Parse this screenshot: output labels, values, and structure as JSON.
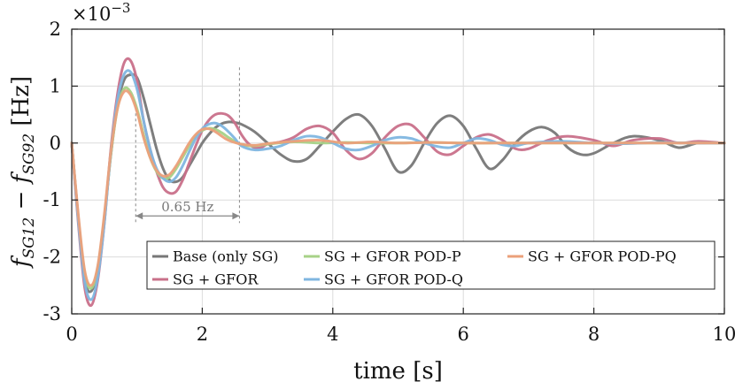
{
  "chart_data": {
    "type": "line",
    "title": "",
    "xlabel": "time [s]",
    "ylabel": "f_SG12 − f_SG92 [Hz]",
    "ylabel_parts": {
      "f1": "f",
      "sub1": "SG12",
      "minus": "−",
      "f2": "f",
      "sub2": "SG92",
      "unit": "[Hz]"
    },
    "y_multiplier": "×10",
    "y_multiplier_exp": "−3",
    "xlim": [
      0,
      10
    ],
    "ylim": [
      -3,
      2
    ],
    "xticks": [
      0,
      2,
      4,
      6,
      8,
      10
    ],
    "xtick_labels": [
      "0",
      "2",
      "4",
      "6",
      "8",
      "10"
    ],
    "yticks": [
      2,
      1,
      0,
      -1,
      -2,
      -3
    ],
    "ytick_labels": [
      "2",
      "1",
      "0",
      "-1",
      "-2",
      "-3"
    ],
    "grid": true,
    "legend_position": "lower-right",
    "annotation": {
      "text": "0.65 Hz",
      "x_start": 0.98,
      "x_end": 2.57,
      "y": -1.28,
      "y_top": -1.0
    },
    "series": [
      {
        "name": "Base (only SG)",
        "color": "#777777",
        "x": [
          0,
          0.1,
          0.2,
          0.3,
          0.4,
          0.5,
          0.6,
          0.7,
          0.8,
          0.9,
          1.0,
          1.1,
          1.2,
          1.3,
          1.4,
          1.5,
          1.6,
          1.7,
          1.8,
          1.9,
          2.0,
          2.1,
          2.2,
          2.3,
          2.4,
          2.5,
          2.6,
          2.8,
          3.0,
          3.2,
          3.4,
          3.6,
          3.8,
          4.0,
          4.2,
          4.4,
          4.6,
          4.8,
          5.0,
          5.2,
          5.4,
          5.6,
          5.8,
          6.0,
          6.2,
          6.4,
          6.6,
          6.8,
          7.0,
          7.2,
          7.4,
          7.6,
          7.8,
          8.0,
          8.3,
          8.6,
          9.0,
          9.3,
          9.6,
          10.0
        ],
        "y": [
          0,
          -1.3,
          -2.4,
          -2.6,
          -2.2,
          -1.3,
          -0.2,
          0.65,
          1.1,
          1.2,
          1.15,
          0.8,
          0.35,
          -0.1,
          -0.45,
          -0.65,
          -0.68,
          -0.6,
          -0.4,
          -0.2,
          0.0,
          0.15,
          0.27,
          0.34,
          0.37,
          0.36,
          0.33,
          0.2,
          0.0,
          -0.2,
          -0.32,
          -0.28,
          -0.05,
          0.2,
          0.42,
          0.5,
          0.3,
          -0.1,
          -0.5,
          -0.4,
          0.0,
          0.35,
          0.48,
          0.3,
          -0.1,
          -0.45,
          -0.3,
          0.0,
          0.2,
          0.28,
          0.18,
          -0.08,
          -0.2,
          -0.18,
          0.0,
          0.12,
          0.05,
          -0.08,
          0.0,
          0.0
        ]
      },
      {
        "name": "SG + GFOR",
        "color": "#c9708a",
        "x": [
          0,
          0.1,
          0.2,
          0.3,
          0.4,
          0.5,
          0.6,
          0.7,
          0.8,
          0.9,
          1.0,
          1.1,
          1.2,
          1.3,
          1.4,
          1.5,
          1.6,
          1.7,
          1.8,
          1.9,
          2.0,
          2.1,
          2.2,
          2.3,
          2.4,
          2.5,
          2.6,
          2.7,
          2.8,
          2.9,
          3.0,
          3.2,
          3.4,
          3.6,
          3.8,
          4.0,
          4.2,
          4.4,
          4.6,
          4.8,
          5.0,
          5.2,
          5.4,
          5.6,
          5.8,
          6.0,
          6.2,
          6.4,
          6.6,
          6.8,
          7.0,
          7.3,
          7.6,
          8.0,
          8.3,
          8.6,
          9.0,
          9.3,
          9.6,
          10.0
        ],
        "y": [
          0,
          -1.4,
          -2.55,
          -2.85,
          -2.4,
          -1.4,
          -0.1,
          0.85,
          1.4,
          1.45,
          1.1,
          0.4,
          -0.1,
          -0.5,
          -0.78,
          -0.88,
          -0.85,
          -0.65,
          -0.35,
          -0.05,
          0.22,
          0.4,
          0.5,
          0.52,
          0.48,
          0.35,
          0.15,
          0.0,
          -0.08,
          -0.08,
          -0.02,
          0.02,
          0.1,
          0.25,
          0.3,
          0.18,
          -0.12,
          -0.28,
          -0.18,
          0.1,
          0.3,
          0.32,
          0.1,
          -0.15,
          -0.2,
          -0.05,
          0.1,
          0.15,
          0.05,
          -0.1,
          -0.1,
          0.05,
          0.12,
          0.05,
          -0.05,
          0.05,
          0.08,
          0.0,
          0.03,
          0.0
        ]
      },
      {
        "name": "SG + GFOR POD-P",
        "color": "#a7d287",
        "x": [
          0,
          0.1,
          0.2,
          0.3,
          0.4,
          0.5,
          0.6,
          0.7,
          0.8,
          0.9,
          1.0,
          1.1,
          1.2,
          1.3,
          1.4,
          1.5,
          1.6,
          1.7,
          1.8,
          1.9,
          2.0,
          2.1,
          2.2,
          2.3,
          2.4,
          2.5,
          2.6,
          2.8,
          3.0,
          3.4,
          3.8,
          4.2,
          4.6,
          5.0,
          5.5,
          6.0,
          6.5,
          7.0,
          8.0,
          9.0,
          10.0
        ],
        "y": [
          0,
          -1.3,
          -2.3,
          -2.55,
          -2.2,
          -1.3,
          -0.2,
          0.6,
          0.95,
          0.9,
          0.6,
          0.15,
          -0.25,
          -0.5,
          -0.62,
          -0.6,
          -0.45,
          -0.25,
          -0.05,
          0.12,
          0.22,
          0.26,
          0.24,
          0.18,
          0.1,
          0.03,
          -0.03,
          -0.05,
          -0.02,
          0.02,
          0.0,
          0.01,
          0.0,
          0.0,
          0.01,
          0.0,
          0.0,
          0.0,
          0.0,
          0.0,
          0.0
        ]
      },
      {
        "name": "SG + GFOR POD-Q",
        "color": "#7fb6e0",
        "x": [
          0,
          0.1,
          0.2,
          0.3,
          0.4,
          0.5,
          0.6,
          0.7,
          0.8,
          0.9,
          1.0,
          1.1,
          1.2,
          1.3,
          1.4,
          1.5,
          1.6,
          1.7,
          1.8,
          1.9,
          2.0,
          2.1,
          2.2,
          2.3,
          2.4,
          2.5,
          2.6,
          2.8,
          3.0,
          3.2,
          3.4,
          3.6,
          3.8,
          4.0,
          4.2,
          4.4,
          4.6,
          4.8,
          5.0,
          5.2,
          5.4,
          5.6,
          5.8,
          6.0,
          6.2,
          6.4,
          6.6,
          6.8,
          7.0,
          7.5,
          8.0,
          8.5,
          9.0,
          9.5,
          10.0
        ],
        "y": [
          0,
          -1.35,
          -2.45,
          -2.75,
          -2.35,
          -1.4,
          -0.15,
          0.75,
          1.2,
          1.25,
          0.95,
          0.4,
          -0.1,
          -0.45,
          -0.62,
          -0.68,
          -0.6,
          -0.4,
          -0.15,
          0.08,
          0.25,
          0.33,
          0.35,
          0.3,
          0.2,
          0.08,
          -0.05,
          -0.12,
          -0.1,
          -0.05,
          0.05,
          0.12,
          0.1,
          0.0,
          -0.1,
          -0.12,
          -0.05,
          0.05,
          0.1,
          0.08,
          0.0,
          -0.06,
          -0.08,
          0.0,
          0.08,
          0.05,
          -0.03,
          -0.05,
          0.0,
          0.03,
          0.0,
          -0.01,
          0.01,
          0.0,
          0.0
        ]
      },
      {
        "name": "SG + GFOR POD-PQ",
        "color": "#eba07a",
        "x": [
          0,
          0.1,
          0.2,
          0.3,
          0.4,
          0.5,
          0.6,
          0.7,
          0.8,
          0.9,
          1.0,
          1.1,
          1.2,
          1.3,
          1.4,
          1.5,
          1.6,
          1.7,
          1.8,
          1.9,
          2.0,
          2.1,
          2.2,
          2.3,
          2.4,
          2.6,
          2.8,
          3.0,
          3.4,
          3.8,
          4.2,
          4.6,
          5.0,
          5.5,
          6.0,
          6.5,
          7.0,
          8.0,
          9.0,
          10.0
        ],
        "y": [
          0,
          -1.25,
          -2.25,
          -2.5,
          -2.15,
          -1.25,
          -0.15,
          0.6,
          0.9,
          0.85,
          0.55,
          0.1,
          -0.25,
          -0.48,
          -0.58,
          -0.55,
          -0.4,
          -0.2,
          0.0,
          0.15,
          0.24,
          0.25,
          0.2,
          0.12,
          0.05,
          -0.02,
          -0.04,
          -0.01,
          0.03,
          0.05,
          0.0,
          0.02,
          0.0,
          0.01,
          0.0,
          0.0,
          0.0,
          0.0,
          0.0,
          0.0
        ]
      }
    ]
  }
}
